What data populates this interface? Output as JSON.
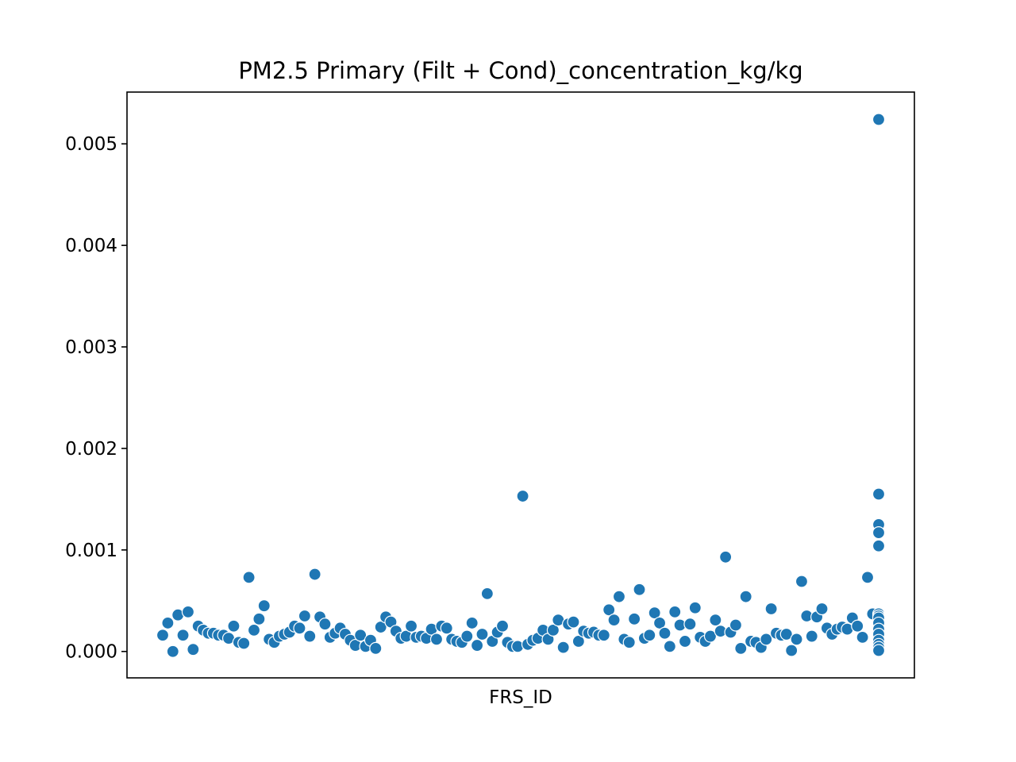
{
  "chart_data": {
    "type": "scatter",
    "title": "PM2.5 Primary (Filt + Cond)_concentration_kg/kg",
    "xlabel": "FRS_ID",
    "ylabel": "",
    "ylim": [
      -0.00026,
      0.00551
    ],
    "yticks": [
      0.0,
      0.001,
      0.002,
      0.003,
      0.004,
      0.005
    ],
    "ytick_labels": [
      "0.000",
      "0.001",
      "0.002",
      "0.003",
      "0.004",
      "0.005"
    ],
    "grid": false,
    "legend": "none",
    "colors": {
      "point": "#1f77b4"
    },
    "series": [
      {
        "values": [
          0.00016,
          0.00028,
          0.0,
          0.00036,
          0.00016,
          0.00039,
          2e-05,
          0.00025,
          0.00021,
          0.00018,
          0.00018,
          0.00016,
          0.00016,
          0.00013,
          0.00025,
          9e-05,
          8e-05,
          0.00073,
          0.00021,
          0.00032,
          0.00045,
          0.00012,
          9e-05,
          0.00015,
          0.00017,
          0.00019,
          0.00025,
          0.00023,
          0.00035,
          0.00015,
          0.00076,
          0.00034,
          0.00027,
          0.00014,
          0.00018,
          0.00023,
          0.00017,
          0.00011,
          6e-05,
          0.00016,
          5e-05,
          0.00011,
          3e-05,
          0.00024,
          0.00034,
          0.00029,
          0.0002,
          0.00013,
          0.00015,
          0.00025,
          0.00014,
          0.00015,
          0.00013,
          0.00022,
          0.00012,
          0.00025,
          0.00023,
          0.00012,
          0.0001,
          9e-05,
          0.00015,
          0.00028,
          6e-05,
          0.00017,
          0.00057,
          0.0001,
          0.00019,
          0.00025,
          9e-05,
          5e-05,
          5e-05,
          0.00153,
          7e-05,
          0.00011,
          0.00013,
          0.00021,
          0.00012,
          0.00021,
          0.00031,
          4e-05,
          0.00027,
          0.00029,
          0.0001,
          0.0002,
          0.00018,
          0.00019,
          0.00016,
          0.00016,
          0.00041,
          0.00031,
          0.00054,
          0.00012,
          9e-05,
          0.00032,
          0.00061,
          0.00013,
          0.00016,
          0.00038,
          0.00028,
          0.00018,
          5e-05,
          0.00039,
          0.00026,
          0.0001,
          0.00027,
          0.00043,
          0.00014,
          0.0001,
          0.00015,
          0.00031,
          0.0002,
          0.00093,
          0.00019,
          0.00026,
          3e-05,
          0.00054,
          0.0001,
          9e-05,
          4e-05,
          0.00012,
          0.00042,
          0.00018,
          0.00016,
          0.00017,
          1e-05,
          0.00012,
          0.00069,
          0.00035,
          0.00015,
          0.00034,
          0.00042,
          0.00023,
          0.00017,
          0.00022,
          0.00024,
          0.00022,
          0.00033,
          0.00025,
          0.00014,
          0.00073,
          0.00037,
          0.00524,
          0.00155,
          0.00125,
          0.00117,
          0.00104,
          0.00037,
          0.00035,
          0.00033,
          0.00028,
          0.00022,
          0.00017,
          0.00011,
          7e-05,
          4e-05,
          1e-05
        ]
      }
    ]
  }
}
